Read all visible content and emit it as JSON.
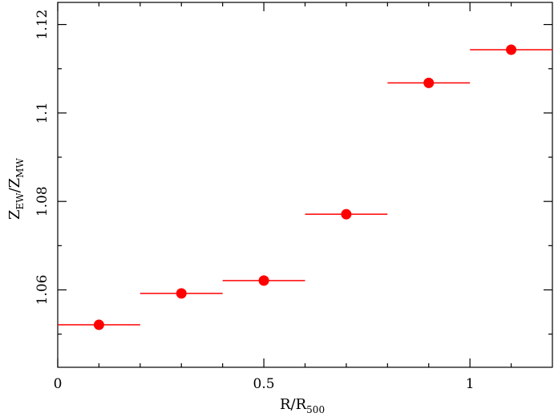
{
  "chart_data": {
    "type": "scatter",
    "xlabel": {
      "main": "R/R",
      "sub": "500"
    },
    "ylabel": {
      "main1": "Z",
      "sub1": "EW",
      "slash": "/Z",
      "sub2": "MW"
    },
    "xlim": [
      0,
      1.2
    ],
    "ylim": [
      1.0425,
      1.125
    ],
    "grid": false,
    "x_major_ticks": [
      0,
      0.5,
      1
    ],
    "x_tick_labels": [
      "0",
      "0.5",
      "1"
    ],
    "x_minor_ticks": [
      0.1,
      0.2,
      0.3,
      0.4,
      0.6,
      0.7,
      0.8,
      0.9,
      1.1
    ],
    "y_major_ticks": [
      1.06,
      1.08,
      1.1,
      1.12
    ],
    "y_tick_labels": [
      "1.06",
      "1.08",
      "1.1",
      "1.12"
    ],
    "y_minor_ticks": [
      1.05,
      1.07,
      1.09,
      1.11
    ],
    "series": [
      {
        "color": "#ff0000",
        "points": [
          {
            "x": 0.1,
            "xerr": 0.1,
            "y": 1.0521
          },
          {
            "x": 0.3,
            "xerr": 0.1,
            "y": 1.0592
          },
          {
            "x": 0.5,
            "xerr": 0.1,
            "y": 1.0621
          },
          {
            "x": 0.7,
            "xerr": 0.1,
            "y": 1.0771
          },
          {
            "x": 0.9,
            "xerr": 0.1,
            "y": 1.1068
          },
          {
            "x": 1.1,
            "xerr": 0.1,
            "y": 1.1143
          }
        ]
      }
    ]
  }
}
